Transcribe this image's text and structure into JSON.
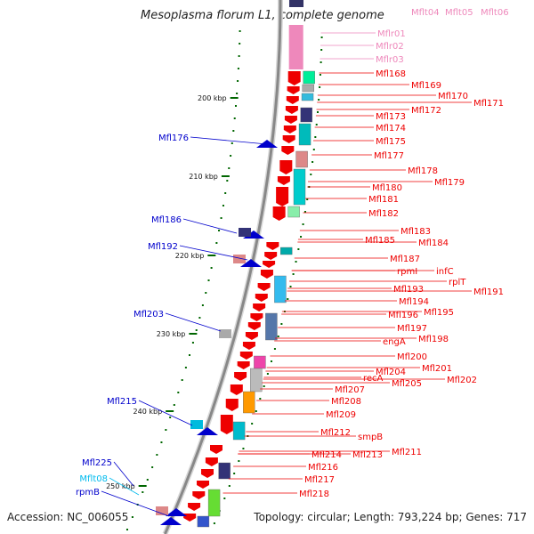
{
  "title": "Mesoplasma florum L1, complete genome",
  "accession": "Accession: NC_006055",
  "summary": "Topology: circular; Length: 793,224 bp; Genes: 717",
  "colors": {
    "backbone": "#888888",
    "forward_gene": "#ee0000",
    "reverse_gene": "#0000cc",
    "trna": "#00bbee",
    "rrna": "#ee88bb",
    "ticks": "#006600"
  },
  "scale_ticks": [
    {
      "label": "200 kbp"
    },
    {
      "label": "210 kbp"
    },
    {
      "label": "220 kbp"
    },
    {
      "label": "230 kbp"
    },
    {
      "label": "240 kbp"
    },
    {
      "label": "250 kbp"
    }
  ],
  "right_labels": [
    {
      "text": "Mflt04",
      "type": "rrna"
    },
    {
      "text": "Mflt05",
      "type": "rrna"
    },
    {
      "text": "Mflt06",
      "type": "rrna"
    },
    {
      "text": "Mflr01",
      "type": "rrna"
    },
    {
      "text": "Mflr02",
      "type": "rrna"
    },
    {
      "text": "Mflr03",
      "type": "rrna"
    },
    {
      "text": "Mfl168",
      "type": "gene"
    },
    {
      "text": "Mfl169",
      "type": "gene"
    },
    {
      "text": "Mfl170",
      "type": "gene"
    },
    {
      "text": "Mfl171",
      "type": "gene"
    },
    {
      "text": "Mfl172",
      "type": "gene"
    },
    {
      "text": "Mfl173",
      "type": "gene"
    },
    {
      "text": "Mfl174",
      "type": "gene"
    },
    {
      "text": "Mfl175",
      "type": "gene"
    },
    {
      "text": "Mfl177",
      "type": "gene"
    },
    {
      "text": "Mfl178",
      "type": "gene"
    },
    {
      "text": "Mfl179",
      "type": "gene"
    },
    {
      "text": "Mfl180",
      "type": "gene"
    },
    {
      "text": "Mfl181",
      "type": "gene"
    },
    {
      "text": "Mfl182",
      "type": "gene"
    },
    {
      "text": "Mfl183",
      "type": "gene"
    },
    {
      "text": "Mfl185",
      "type": "gene"
    },
    {
      "text": "Mfl184",
      "type": "gene"
    },
    {
      "text": "Mfl187",
      "type": "gene"
    },
    {
      "text": "rpmI",
      "type": "gene"
    },
    {
      "text": "infC",
      "type": "gene"
    },
    {
      "text": "rplT",
      "type": "gene"
    },
    {
      "text": "Mfl191",
      "type": "gene"
    },
    {
      "text": "Mfl193",
      "type": "gene"
    },
    {
      "text": "Mfl194",
      "type": "gene"
    },
    {
      "text": "Mfl196",
      "type": "gene"
    },
    {
      "text": "Mfl195",
      "type": "gene"
    },
    {
      "text": "Mfl197",
      "type": "gene"
    },
    {
      "text": "engA",
      "type": "gene"
    },
    {
      "text": "Mfl198",
      "type": "gene"
    },
    {
      "text": "Mfl200",
      "type": "gene"
    },
    {
      "text": "Mfl201",
      "type": "gene"
    },
    {
      "text": "Mfl204",
      "type": "gene"
    },
    {
      "text": "Mfl202",
      "type": "gene"
    },
    {
      "text": "recA",
      "type": "gene"
    },
    {
      "text": "Mfl205",
      "type": "gene"
    },
    {
      "text": "Mfl207",
      "type": "gene"
    },
    {
      "text": "Mfl208",
      "type": "gene"
    },
    {
      "text": "Mfl209",
      "type": "gene"
    },
    {
      "text": "Mfl212",
      "type": "gene"
    },
    {
      "text": "smpB",
      "type": "gene"
    },
    {
      "text": "Mfl211",
      "type": "gene"
    },
    {
      "text": "Mfl214",
      "type": "gene"
    },
    {
      "text": "Mfl213",
      "type": "gene"
    },
    {
      "text": "Mfl216",
      "type": "gene"
    },
    {
      "text": "Mfl217",
      "type": "gene"
    },
    {
      "text": "Mfl218",
      "type": "gene"
    }
  ],
  "left_labels": [
    {
      "text": "Mfl176",
      "type": "gene"
    },
    {
      "text": "Mfl186",
      "type": "gene"
    },
    {
      "text": "Mfl192",
      "type": "gene"
    },
    {
      "text": "Mfl203",
      "type": "gene"
    },
    {
      "text": "Mfl215",
      "type": "gene"
    },
    {
      "text": "Mfl225",
      "type": "gene"
    },
    {
      "text": "Mflt08",
      "type": "trna"
    },
    {
      "text": "rpmB",
      "type": "gene"
    }
  ]
}
